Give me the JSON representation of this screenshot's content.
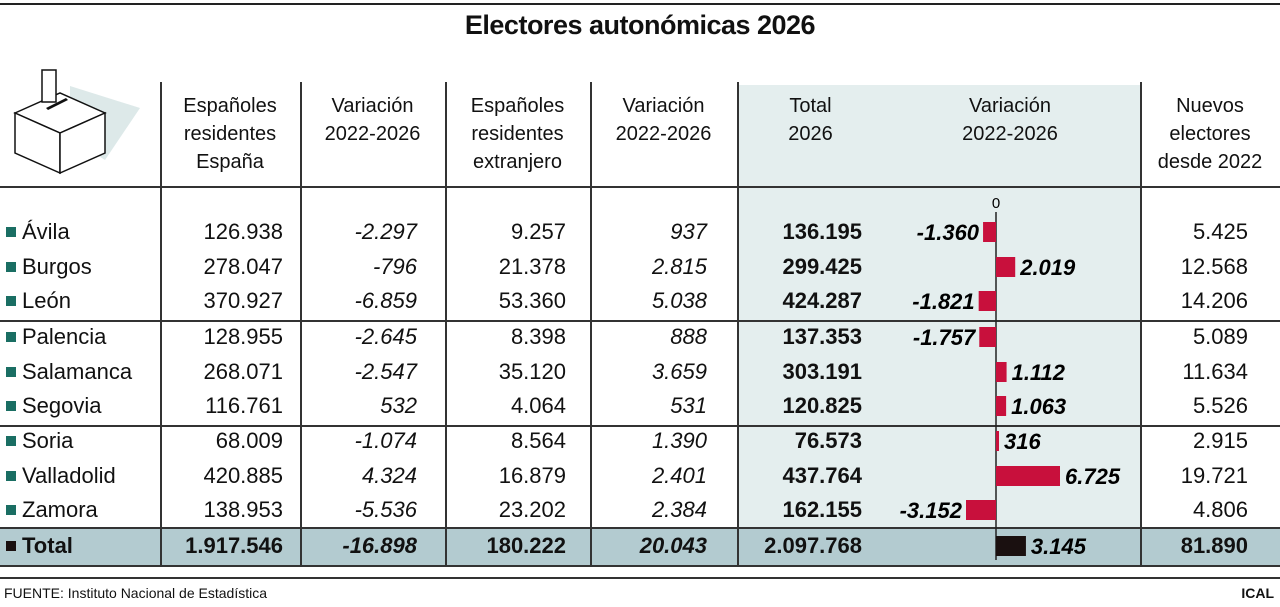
{
  "title": "Electores autonómicas 2026",
  "headers": [
    "Españoles\nresidentes\nEspaña",
    "Variación\n2022-2026",
    "Españoles\nresidentes\nextranjero",
    "Variación\n2022-2026",
    "Total\n2026",
    "Variación\n2022-2026",
    "Nuevos\nelectores\ndesde 2022"
  ],
  "icon": "ballot-box-icon",
  "rows": [
    {
      "name": "Ávila",
      "res_esp": "126.938",
      "var_esp": "-2.297",
      "res_ext": "9.257",
      "var_ext": "937",
      "total": "136.195",
      "var_total": "-1.360",
      "nuevos": "5.425"
    },
    {
      "name": "Burgos",
      "res_esp": "278.047",
      "var_esp": "-796",
      "res_ext": "21.378",
      "var_ext": "2.815",
      "total": "299.425",
      "var_total": "2.019",
      "nuevos": "12.568"
    },
    {
      "name": "León",
      "res_esp": "370.927",
      "var_esp": "-6.859",
      "res_ext": "53.360",
      "var_ext": "5.038",
      "total": "424.287",
      "var_total": "-1.821",
      "nuevos": "14.206"
    },
    {
      "name": "Palencia",
      "res_esp": "128.955",
      "var_esp": "-2.645",
      "res_ext": "8.398",
      "var_ext": "888",
      "total": "137.353",
      "var_total": "-1.757",
      "nuevos": "5.089"
    },
    {
      "name": "Salamanca",
      "res_esp": "268.071",
      "var_esp": "-2.547",
      "res_ext": "35.120",
      "var_ext": "3.659",
      "total": "303.191",
      "var_total": "1.112",
      "nuevos": "11.634"
    },
    {
      "name": "Segovia",
      "res_esp": "116.761",
      "var_esp": "532",
      "res_ext": "4.064",
      "var_ext": "531",
      "total": "120.825",
      "var_total": "1.063",
      "nuevos": "5.526"
    },
    {
      "name": "Soria",
      "res_esp": "68.009",
      "var_esp": "-1.074",
      "res_ext": "8.564",
      "var_ext": "1.390",
      "total": "76.573",
      "var_total": "316",
      "nuevos": "2.915"
    },
    {
      "name": "Valladolid",
      "res_esp": "420.885",
      "var_esp": "4.324",
      "res_ext": "16.879",
      "var_ext": "2.401",
      "total": "437.764",
      "var_total": "6.725",
      "nuevos": "19.721"
    },
    {
      "name": "Zamora",
      "res_esp": "138.953",
      "var_esp": "-5.536",
      "res_ext": "23.202",
      "var_ext": "2.384",
      "total": "162.155",
      "var_total": "-3.152",
      "nuevos": "4.806"
    },
    {
      "name": "Total",
      "res_esp": "1.917.546",
      "var_esp": "-16.898",
      "res_ext": "180.222",
      "var_ext": "20.043",
      "total": "2.097.768",
      "var_total": "3.145",
      "nuevos": "81.890"
    }
  ],
  "chart_data": {
    "type": "bar",
    "orientation": "horizontal",
    "categories": [
      "Ávila",
      "Burgos",
      "León",
      "Palencia",
      "Salamanca",
      "Segovia",
      "Soria",
      "Valladolid",
      "Zamora",
      "Total"
    ],
    "values": [
      -1360,
      2019,
      -1821,
      -1757,
      1112,
      1063,
      316,
      6725,
      -3152,
      3145
    ],
    "zero_label": "0",
    "colors": {
      "bar": "#c8103c",
      "total_bar": "#1a1010",
      "accent": "#1a6e63",
      "shade": "#e4eeee",
      "total_row": "#b3cbd0"
    }
  },
  "footer": {
    "source": "FUENTE: Instituto Nacional de Estadística",
    "brand": "ICAL"
  }
}
